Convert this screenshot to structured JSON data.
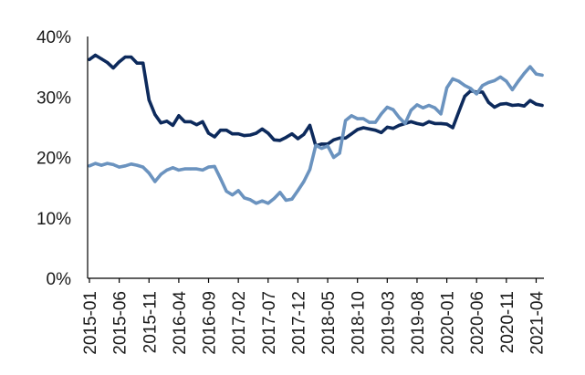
{
  "chart_data": {
    "type": "line",
    "title": "",
    "xlabel": "",
    "ylabel": "",
    "ylim": [
      0,
      40
    ],
    "y_ticks": [
      0,
      10,
      20,
      30,
      40
    ],
    "y_tick_format": "percent",
    "grid": false,
    "legend": "none",
    "x": [
      "2015-01",
      "2015-02",
      "2015-03",
      "2015-04",
      "2015-05",
      "2015-06",
      "2015-07",
      "2015-08",
      "2015-09",
      "2015-10",
      "2015-11",
      "2015-12",
      "2016-01",
      "2016-02",
      "2016-03",
      "2016-04",
      "2016-05",
      "2016-06",
      "2016-07",
      "2016-08",
      "2016-09",
      "2016-10",
      "2016-11",
      "2016-12",
      "2017-01",
      "2017-02",
      "2017-03",
      "2017-04",
      "2017-05",
      "2017-06",
      "2017-07",
      "2017-08",
      "2017-09",
      "2017-10",
      "2017-11",
      "2017-12",
      "2018-01",
      "2018-02",
      "2018-03",
      "2018-04",
      "2018-05",
      "2018-06",
      "2018-07",
      "2018-08",
      "2018-09",
      "2018-10",
      "2018-11",
      "2018-12",
      "2019-01",
      "2019-02",
      "2019-03",
      "2019-04",
      "2019-05",
      "2019-06",
      "2019-07",
      "2019-08",
      "2019-09",
      "2019-10",
      "2019-11",
      "2019-12",
      "2020-01",
      "2020-02",
      "2020-03",
      "2020-04",
      "2020-05",
      "2020-06",
      "2020-07",
      "2020-08",
      "2020-09",
      "2020-10",
      "2020-11",
      "2020-12",
      "2021-01",
      "2021-02",
      "2021-03",
      "2021-04",
      "2021-05"
    ],
    "x_tick_labels": [
      "2015-01",
      "2015-06",
      "2015-11",
      "2016-04",
      "2016-09",
      "2017-02",
      "2017-07",
      "2017-12",
      "2018-05",
      "2018-10",
      "2019-03",
      "2019-08",
      "2020-01",
      "2020-06",
      "2020-11",
      "2021-04"
    ],
    "series": [
      {
        "color": "#0d2a5c",
        "values": [
          36.2,
          36.9,
          36.3,
          35.7,
          34.8,
          35.8,
          36.6,
          36.6,
          35.6,
          35.6,
          29.5,
          27.1,
          25.7,
          26.0,
          25.3,
          26.9,
          25.9,
          25.9,
          25.4,
          25.9,
          24.0,
          23.4,
          24.5,
          24.5,
          23.9,
          23.9,
          23.6,
          23.7,
          24.0,
          24.7,
          24.0,
          22.9,
          22.8,
          23.3,
          23.9,
          23.1,
          23.8,
          25.3,
          21.9,
          22.2,
          22.2,
          22.9,
          23.2,
          23.2,
          23.9,
          24.6,
          24.9,
          24.7,
          24.5,
          24.1,
          25.0,
          24.8,
          25.3,
          25.6,
          25.9,
          25.6,
          25.4,
          25.9,
          25.6,
          25.6,
          25.5,
          24.9,
          27.5,
          30.1,
          31.0,
          30.8,
          30.8,
          29.1,
          28.3,
          28.8,
          28.9,
          28.6,
          28.7,
          28.5,
          29.4,
          28.8,
          28.6
        ]
      },
      {
        "color": "#6b93bf",
        "values": [
          18.6,
          19.0,
          18.7,
          19.0,
          18.8,
          18.4,
          18.6,
          18.9,
          18.7,
          18.4,
          17.4,
          16.0,
          17.2,
          17.9,
          18.3,
          17.9,
          18.1,
          18.1,
          18.1,
          17.9,
          18.4,
          18.5,
          16.5,
          14.4,
          13.8,
          14.5,
          13.3,
          13.0,
          12.4,
          12.8,
          12.4,
          13.2,
          14.2,
          12.9,
          13.1,
          14.5,
          16.0,
          18.0,
          22.0,
          21.5,
          21.9,
          20.0,
          20.7,
          26.1,
          26.9,
          26.4,
          26.4,
          25.8,
          25.8,
          27.2,
          28.3,
          27.9,
          26.6,
          25.6,
          27.8,
          28.7,
          28.2,
          28.6,
          28.2,
          27.2,
          31.5,
          33.0,
          32.6,
          31.9,
          31.4,
          30.5,
          31.9,
          32.4,
          32.7,
          33.3,
          32.6,
          31.2,
          32.6,
          33.9,
          35.0,
          33.8,
          33.6
        ]
      }
    ]
  }
}
